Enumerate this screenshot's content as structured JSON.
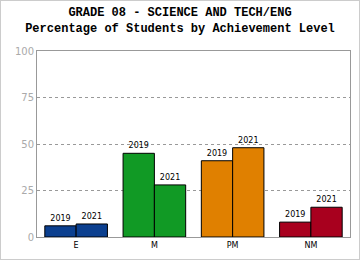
{
  "chart_data": {
    "type": "bar",
    "title": "GRADE 08 - SCIENCE AND TECH/ENG",
    "subtitle": "Percentage of Students by Achievement Level",
    "categories": [
      "E",
      "M",
      "PM",
      "NM"
    ],
    "series": [
      {
        "name": "2019",
        "values": [
          6,
          45,
          41,
          8
        ],
        "colors": [
          "#0b3f8f",
          "#119a25",
          "#e08000",
          "#a8001e"
        ]
      },
      {
        "name": "2021",
        "values": [
          7,
          28,
          48,
          16
        ],
        "colors": [
          "#0b3f8f",
          "#119a25",
          "#e08000",
          "#a8001e"
        ]
      }
    ],
    "ylim": [
      0,
      100
    ],
    "yticks": [
      0,
      25,
      50,
      75,
      100
    ],
    "grid": true
  }
}
